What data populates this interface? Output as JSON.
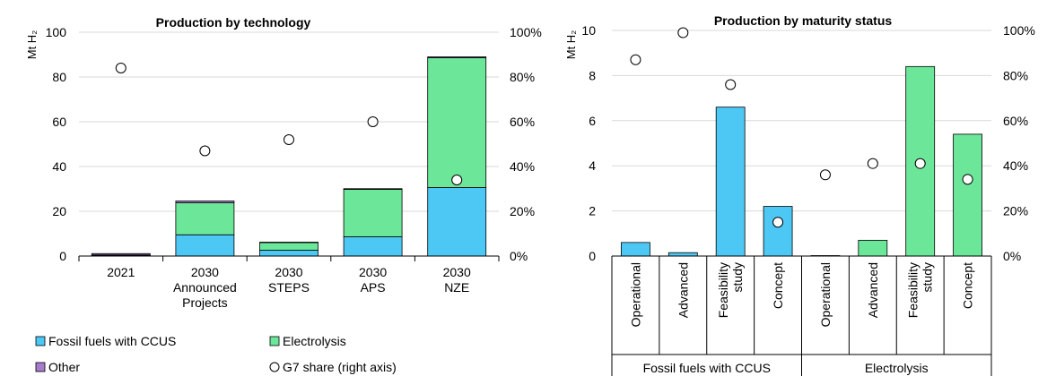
{
  "colors": {
    "fossil": "#4dc8f5",
    "electrolysis": "#6ce79a",
    "other": "#a77ccc",
    "marker_fill": "#ffffff",
    "outline": "#000000",
    "grid": "#d9d9d9"
  },
  "legend": {
    "fossil": "Fossil fuels with CCUS",
    "electrolysis": "Electrolysis",
    "other": "Other",
    "share": "G7 share (right axis)"
  },
  "chart_data": [
    {
      "type": "bar",
      "stacked": true,
      "title": "Production by technology",
      "ylabel": "Mt H₂",
      "ylim": [
        0,
        100
      ],
      "yticks": [
        "0",
        "20",
        "40",
        "60",
        "80",
        "100"
      ],
      "y2lim": [
        0,
        1
      ],
      "y2ticks": [
        "0%",
        "20%",
        "40%",
        "60%",
        "80%",
        "100%"
      ],
      "grid": true,
      "categories": [
        [
          "2021"
        ],
        [
          "2030",
          "Announced",
          "Projects"
        ],
        [
          "2030",
          "STEPS"
        ],
        [
          "2030",
          "APS"
        ],
        [
          "2030",
          "NZE"
        ]
      ],
      "series": [
        {
          "name": "Fossil fuels with CCUS",
          "key": "fossil",
          "values": [
            0.3,
            9.5,
            2.6,
            8.6,
            30.6
          ]
        },
        {
          "name": "Electrolysis",
          "key": "electrolysis",
          "values": [
            0.2,
            14.3,
            3.4,
            21.2,
            58.0
          ]
        },
        {
          "name": "Other",
          "key": "other",
          "values": [
            0.6,
            0.8,
            0.2,
            0.3,
            0.4
          ]
        }
      ],
      "share": {
        "name": "G7 share (right axis)",
        "values": [
          0.84,
          0.47,
          0.52,
          0.6,
          0.34
        ]
      }
    },
    {
      "type": "bar",
      "title": "Production by maturity status",
      "ylabel": "Mt H₂",
      "ylim": [
        0,
        10
      ],
      "yticks": [
        "0",
        "2",
        "4",
        "6",
        "8",
        "10"
      ],
      "y2lim": [
        0,
        1
      ],
      "y2ticks": [
        "0%",
        "20%",
        "40%",
        "60%",
        "80%",
        "100%"
      ],
      "grid": true,
      "groups": [
        {
          "label": "Fossil fuels with CCUS",
          "key": "fossil",
          "categories": [
            [
              "Operational"
            ],
            [
              "Advanced"
            ],
            [
              "Feasibility",
              "study"
            ],
            [
              "Concept"
            ]
          ],
          "values": [
            0.6,
            0.15,
            6.6,
            2.2
          ],
          "share": [
            0.87,
            0.99,
            0.76,
            0.15
          ]
        },
        {
          "label": "Electrolysis",
          "key": "electrolysis",
          "categories": [
            [
              "Operational"
            ],
            [
              "Advanced"
            ],
            [
              "Feasibility",
              "study"
            ],
            [
              "Concept"
            ]
          ],
          "values": [
            0.02,
            0.7,
            8.4,
            5.4
          ],
          "share": [
            0.36,
            0.41,
            0.41,
            0.34
          ]
        }
      ]
    }
  ]
}
